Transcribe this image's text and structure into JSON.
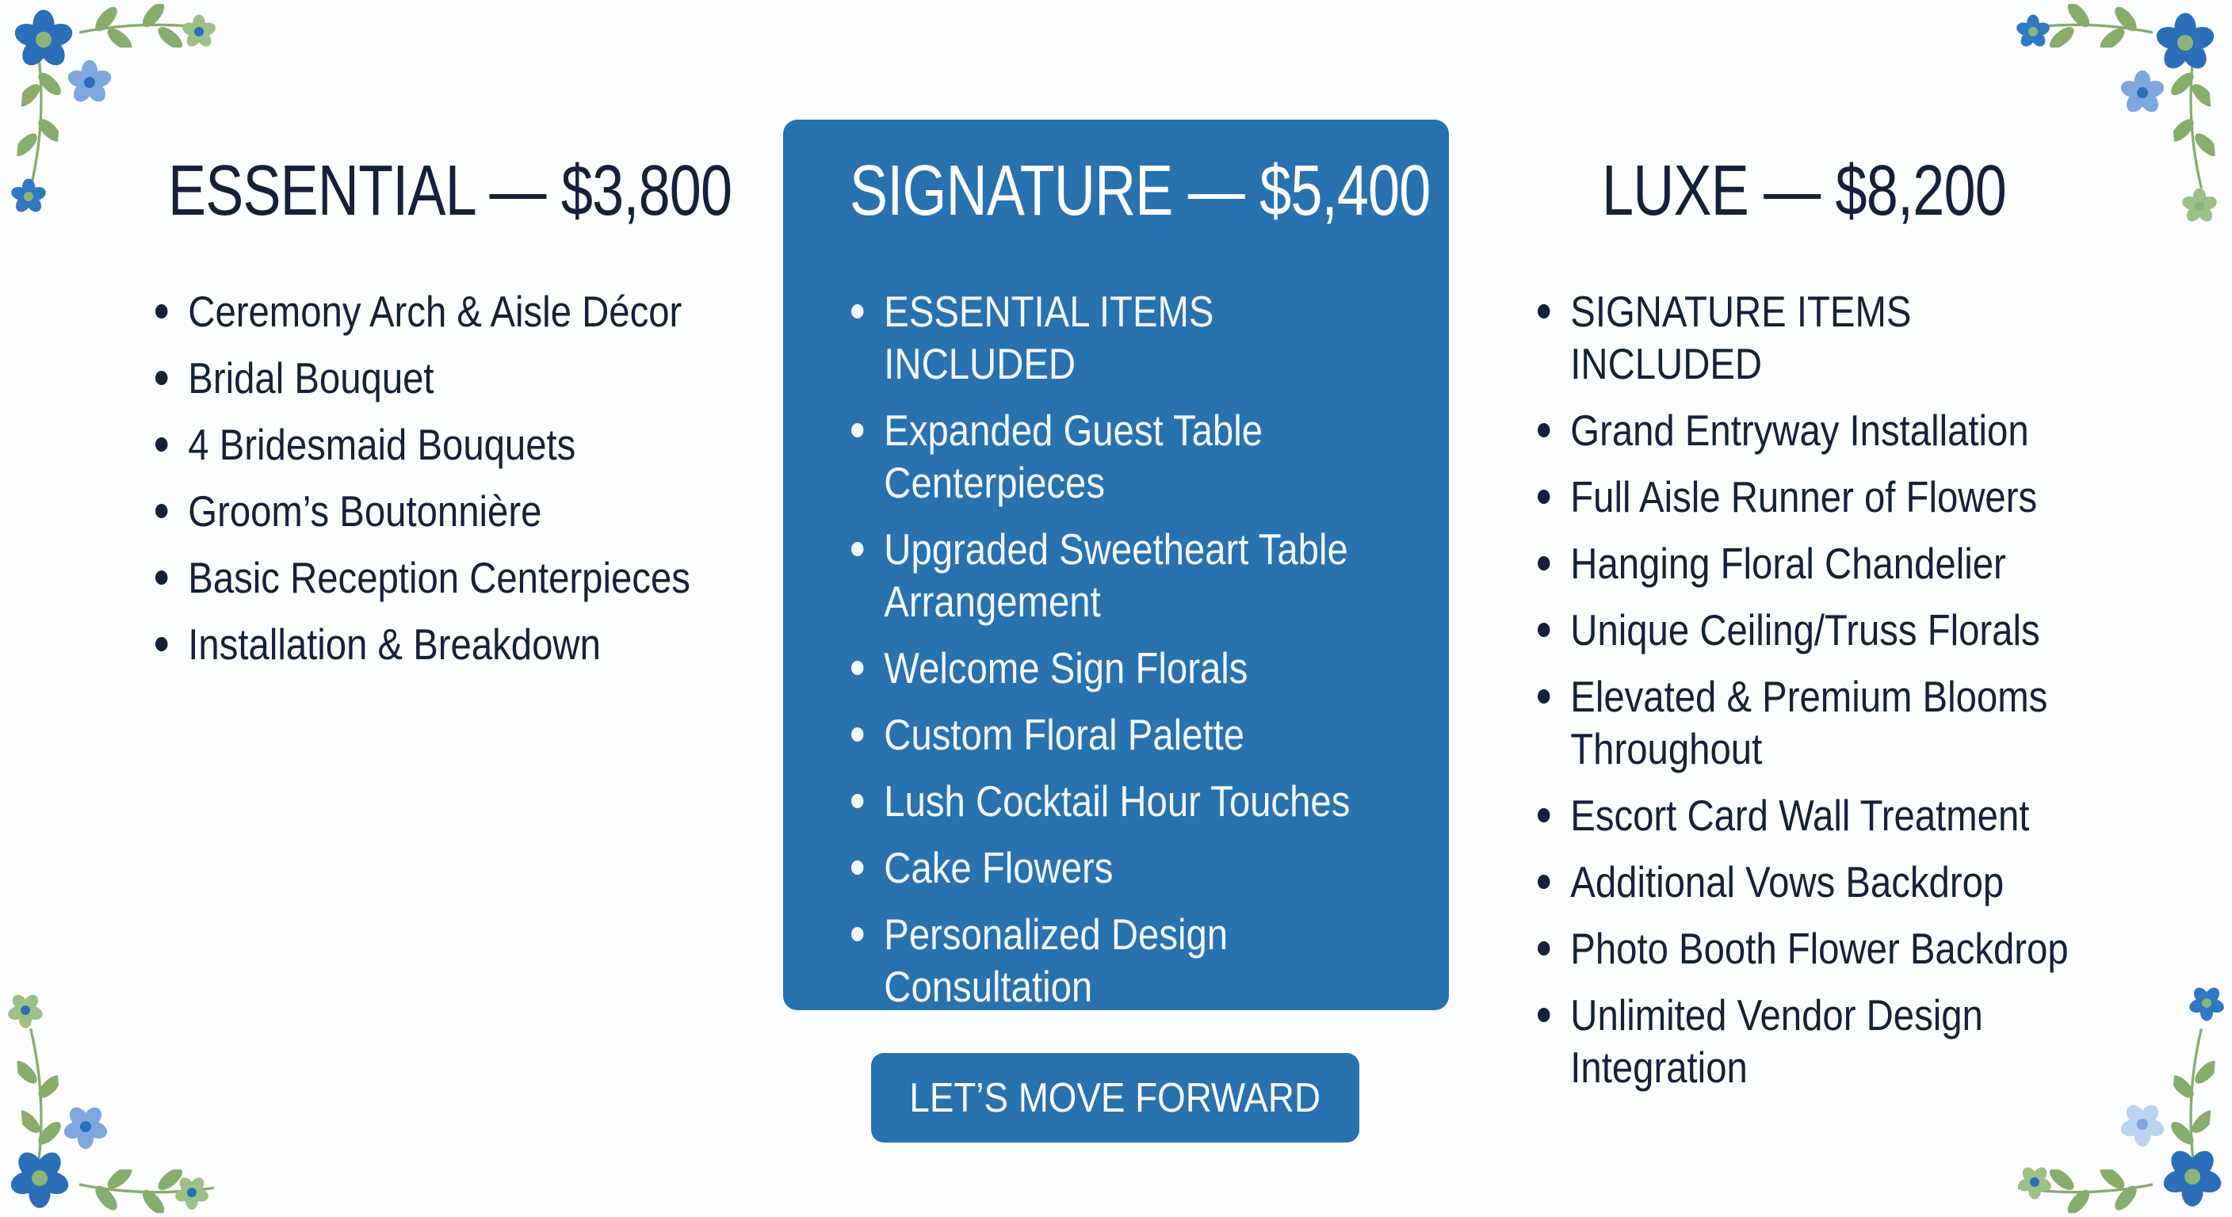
{
  "tiers": [
    {
      "title": "ESSENTIAL — $3,800",
      "items": [
        "Ceremony Arch & Aisle Décor",
        "Bridal Bouquet",
        "4 Bridesmaid Bouquets",
        "Groom’s Boutonnière",
        "Basic Reception Centerpieces",
        "Installation & Breakdown"
      ]
    },
    {
      "title": "SIGNATURE — $5,400",
      "highlighted": true,
      "items": [
        "ESSENTIAL ITEMS INCLUDED",
        "Expanded Guest Table Centerpieces",
        "Upgraded Sweetheart Table Arrangement",
        "Welcome Sign Florals",
        "Custom Floral Palette",
        "Lush Cocktail Hour Touches",
        "Cake Flowers",
        "Personalized Design Consultation"
      ]
    },
    {
      "title": "LUXE — $8,200",
      "items": [
        "SIGNATURE ITEMS INCLUDED",
        "Grand Entryway Installation",
        "Full Aisle Runner of Flowers",
        "Hanging Floral Chandelier",
        "Unique Ceiling/Truss Florals",
        "Elevated & Premium Blooms Throughout",
        "Escort Card Wall Treatment",
        "Additional Vows Backdrop",
        "Photo Booth Flower Backdrop",
        "Unlimited Vendor Design Integration"
      ]
    }
  ],
  "cta": {
    "label": "LET’S MOVE FORWARD"
  },
  "colors": {
    "accent": "#2772af",
    "text": "#16203a",
    "leaf": "#86ad6c",
    "flower_dark": "#2a6fb8",
    "flower_light": "#7ea7de"
  },
  "decor_icons": [
    "blue-flower-icon",
    "leaf-vine-icon"
  ]
}
